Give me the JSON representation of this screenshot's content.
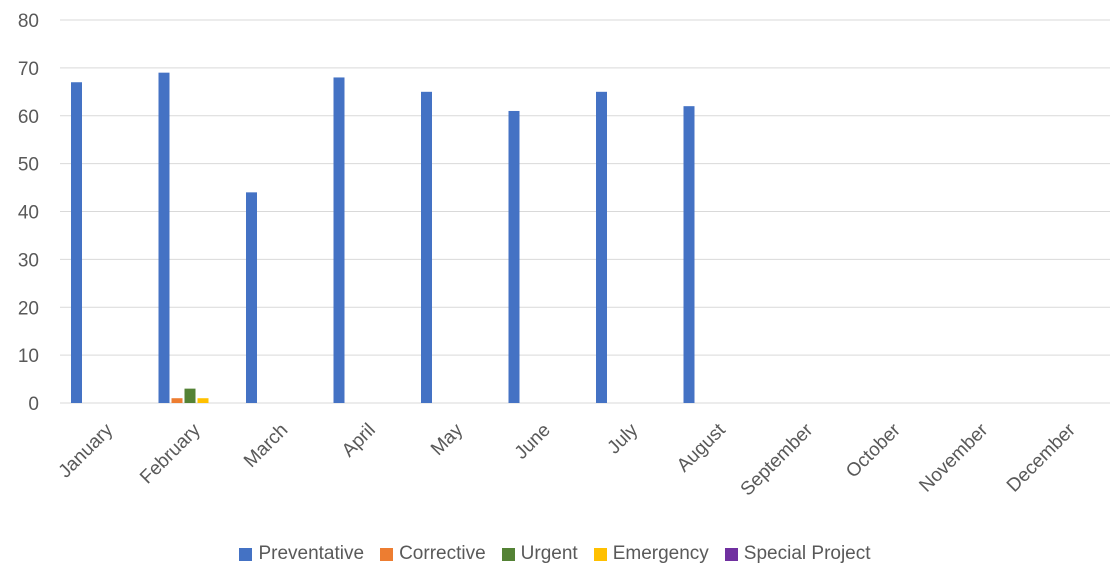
{
  "chart_data": {
    "type": "bar",
    "categories": [
      "January",
      "February",
      "March",
      "April",
      "May",
      "June",
      "July",
      "August",
      "September",
      "October",
      "November",
      "December"
    ],
    "series": [
      {
        "name": "Preventative",
        "color": "#4472C4",
        "values": [
          67,
          69,
          44,
          68,
          65,
          61,
          65,
          62,
          0,
          0,
          0,
          0
        ]
      },
      {
        "name": "Corrective",
        "color": "#ED7D31",
        "values": [
          0,
          1,
          0,
          0,
          0,
          0,
          0,
          0,
          0,
          0,
          0,
          0
        ]
      },
      {
        "name": "Urgent",
        "color": "#548235",
        "values": [
          0,
          3,
          0,
          0,
          0,
          0,
          0,
          0,
          0,
          0,
          0,
          0
        ]
      },
      {
        "name": "Emergency",
        "color": "#FFC000",
        "values": [
          0,
          1,
          0,
          0,
          0,
          0,
          0,
          0,
          0,
          0,
          0,
          0
        ]
      },
      {
        "name": "Special Project",
        "color": "#7030A0",
        "values": [
          0,
          0,
          0,
          0,
          0,
          0,
          0,
          0,
          0,
          0,
          0,
          0
        ]
      }
    ],
    "yticks": [
      0,
      10,
      20,
      30,
      40,
      50,
      60,
      70,
      80
    ],
    "ylim": [
      0,
      80
    ],
    "grid": true,
    "gridColor": "#D9D9D9",
    "legend_position": "bottom"
  }
}
